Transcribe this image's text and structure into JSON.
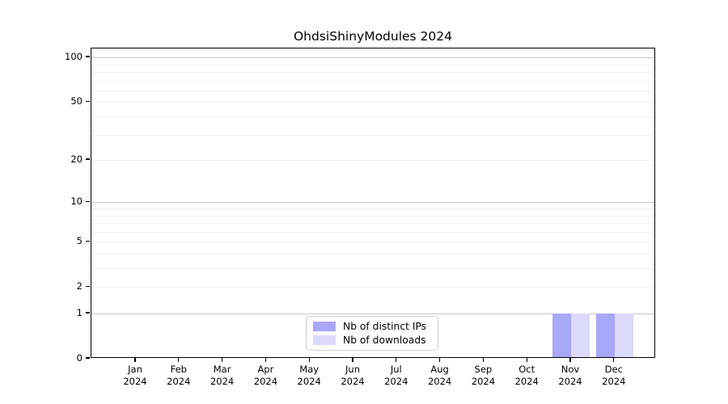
{
  "chart_data": {
    "type": "bar",
    "title": "OhdsiShinyModules 2024",
    "categories": [
      {
        "month": "Jan",
        "year": "2024"
      },
      {
        "month": "Feb",
        "year": "2024"
      },
      {
        "month": "Mar",
        "year": "2024"
      },
      {
        "month": "Apr",
        "year": "2024"
      },
      {
        "month": "May",
        "year": "2024"
      },
      {
        "month": "Jun",
        "year": "2024"
      },
      {
        "month": "Jul",
        "year": "2024"
      },
      {
        "month": "Aug",
        "year": "2024"
      },
      {
        "month": "Sep",
        "year": "2024"
      },
      {
        "month": "Oct",
        "year": "2024"
      },
      {
        "month": "Nov",
        "year": "2024"
      },
      {
        "month": "Dec",
        "year": "2024"
      }
    ],
    "series": [
      {
        "name": "Nb of distinct IPs",
        "color": "#a9a7f8",
        "values": [
          0,
          0,
          0,
          0,
          0,
          0,
          0,
          0,
          0,
          0,
          1,
          1
        ]
      },
      {
        "name": "Nb of downloads",
        "color": "#dbdaf9",
        "values": [
          0,
          0,
          0,
          0,
          0,
          0,
          0,
          0,
          0,
          0,
          1,
          1
        ]
      }
    ],
    "xlabel": "",
    "ylabel": "",
    "yscale": "log1p",
    "ylim": [
      0,
      115
    ],
    "yticks": [
      0,
      1,
      2,
      5,
      10,
      20,
      50,
      100
    ],
    "gridlines": {
      "major": [
        1,
        10,
        100
      ],
      "minor": [
        2,
        3,
        4,
        5,
        6,
        7,
        8,
        9,
        20,
        30,
        40,
        50,
        60,
        70,
        80,
        90
      ]
    },
    "grid_on": true,
    "legend_position": "bottom-center-inside"
  },
  "colors": {
    "major_grid": "#c8c8c8",
    "minor_grid": "#f0f0f0",
    "axis": "#000000",
    "background": "#ffffff"
  }
}
